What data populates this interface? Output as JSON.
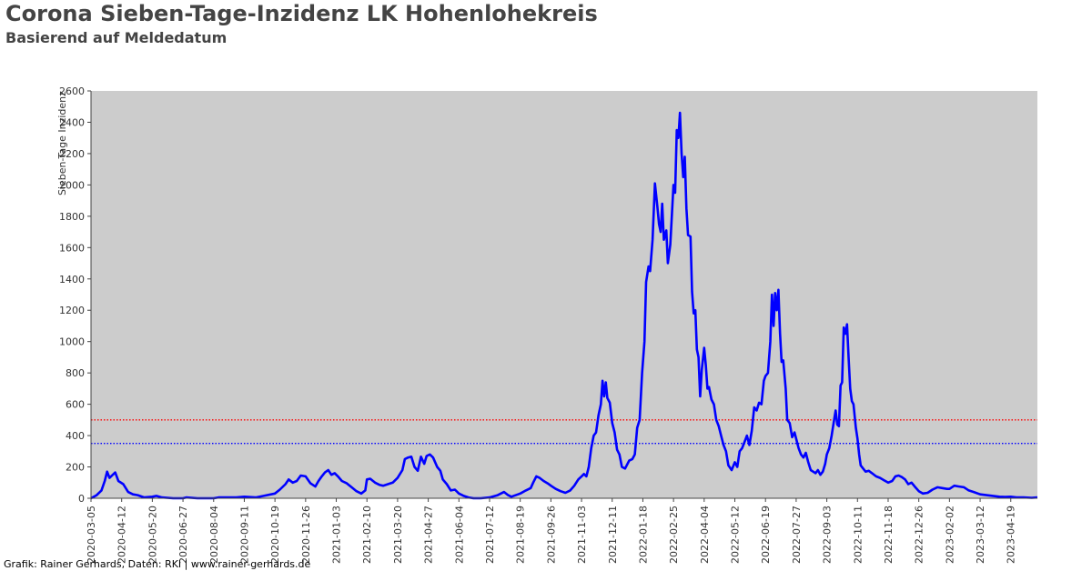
{
  "header": {
    "title": "Corona Sieben-Tage-Inzidenz LK Hohenlohekreis",
    "subtitle": "Basierend auf Meldedatum"
  },
  "footer": {
    "credit": "Grafik: Rainer Gerhards, Daten: RKI | www.rainer-gerhards.de"
  },
  "colors": {
    "plot_background": "#cccccc",
    "series_line": "#0000ff",
    "threshold_500": "#ff0000",
    "threshold_350": "#0000ff"
  },
  "chart_data": {
    "type": "line",
    "title": "Corona Sieben-Tage-Inzidenz LK Hohenlohekreis",
    "subtitle": "Basierend auf Meldedatum",
    "xlabel": "",
    "ylabel": "Sieben-Tage Inzidenz",
    "ylim": [
      0,
      2600
    ],
    "xlim": [
      "2020-03-05",
      "2023-05-22"
    ],
    "grid": false,
    "yticks": [
      0,
      200,
      400,
      600,
      800,
      1000,
      1200,
      1400,
      1600,
      1800,
      2000,
      2200,
      2400,
      2600
    ],
    "xticks": [
      "2020-03-05",
      "2020-04-12",
      "2020-05-20",
      "2020-06-27",
      "2020-08-04",
      "2020-09-11",
      "2020-10-19",
      "2020-11-26",
      "2021-01-03",
      "2021-02-10",
      "2021-03-20",
      "2021-04-27",
      "2021-06-04",
      "2021-07-12",
      "2021-08-19",
      "2021-09-26",
      "2021-11-03",
      "2021-12-11",
      "2022-01-18",
      "2022-02-25",
      "2022-04-04",
      "2022-05-12",
      "2022-06-19",
      "2022-07-27",
      "2022-09-03",
      "2022-10-11",
      "2022-11-18",
      "2022-12-26",
      "2023-02-02",
      "2023-03-12",
      "2023-04-19"
    ],
    "reference_lines": [
      {
        "y": 500,
        "color": "#ff0000",
        "style": "dotted"
      },
      {
        "y": 350,
        "color": "#0000ff",
        "style": "dotted"
      }
    ],
    "series": [
      {
        "color": "#0000ff",
        "points": [
          [
            "2020-03-05",
            0
          ],
          [
            "2020-03-12",
            20
          ],
          [
            "2020-03-18",
            50
          ],
          [
            "2020-03-22",
            110
          ],
          [
            "2020-03-25",
            170
          ],
          [
            "2020-03-28",
            130
          ],
          [
            "2020-04-01",
            150
          ],
          [
            "2020-04-04",
            165
          ],
          [
            "2020-04-08",
            110
          ],
          [
            "2020-04-14",
            90
          ],
          [
            "2020-04-20",
            40
          ],
          [
            "2020-04-26",
            25
          ],
          [
            "2020-05-02",
            20
          ],
          [
            "2020-05-10",
            5
          ],
          [
            "2020-05-20",
            10
          ],
          [
            "2020-05-25",
            15
          ],
          [
            "2020-06-01",
            5
          ],
          [
            "2020-06-15",
            0
          ],
          [
            "2020-06-27",
            0
          ],
          [
            "2020-07-01",
            5
          ],
          [
            "2020-07-15",
            0
          ],
          [
            "2020-08-04",
            0
          ],
          [
            "2020-08-10",
            5
          ],
          [
            "2020-09-01",
            5
          ],
          [
            "2020-09-11",
            10
          ],
          [
            "2020-09-25",
            5
          ],
          [
            "2020-10-05",
            15
          ],
          [
            "2020-10-19",
            30
          ],
          [
            "2020-10-25",
            55
          ],
          [
            "2020-11-01",
            90
          ],
          [
            "2020-11-05",
            120
          ],
          [
            "2020-11-10",
            100
          ],
          [
            "2020-11-15",
            110
          ],
          [
            "2020-11-20",
            145
          ],
          [
            "2020-11-26",
            140
          ],
          [
            "2020-12-02",
            95
          ],
          [
            "2020-12-08",
            75
          ],
          [
            "2020-12-12",
            110
          ],
          [
            "2020-12-16",
            140
          ],
          [
            "2020-12-20",
            165
          ],
          [
            "2020-12-24",
            180
          ],
          [
            "2020-12-28",
            150
          ],
          [
            "2021-01-01",
            160
          ],
          [
            "2021-01-05",
            140
          ],
          [
            "2021-01-10",
            110
          ],
          [
            "2021-01-16",
            95
          ],
          [
            "2021-01-22",
            70
          ],
          [
            "2021-01-28",
            45
          ],
          [
            "2021-02-03",
            30
          ],
          [
            "2021-02-08",
            50
          ],
          [
            "2021-02-10",
            120
          ],
          [
            "2021-02-14",
            125
          ],
          [
            "2021-02-20",
            100
          ],
          [
            "2021-02-26",
            85
          ],
          [
            "2021-03-02",
            80
          ],
          [
            "2021-03-08",
            90
          ],
          [
            "2021-03-14",
            100
          ],
          [
            "2021-03-20",
            130
          ],
          [
            "2021-03-26",
            180
          ],
          [
            "2021-03-29",
            250
          ],
          [
            "2021-04-02",
            260
          ],
          [
            "2021-04-06",
            265
          ],
          [
            "2021-04-10",
            200
          ],
          [
            "2021-04-14",
            175
          ],
          [
            "2021-04-18",
            265
          ],
          [
            "2021-04-22",
            220
          ],
          [
            "2021-04-25",
            270
          ],
          [
            "2021-04-29",
            280
          ],
          [
            "2021-05-03",
            260
          ],
          [
            "2021-05-08",
            200
          ],
          [
            "2021-05-12",
            175
          ],
          [
            "2021-05-15",
            120
          ],
          [
            "2021-05-20",
            90
          ],
          [
            "2021-05-25",
            50
          ],
          [
            "2021-05-30",
            55
          ],
          [
            "2021-06-04",
            30
          ],
          [
            "2021-06-10",
            15
          ],
          [
            "2021-06-16",
            5
          ],
          [
            "2021-06-22",
            0
          ],
          [
            "2021-07-01",
            0
          ],
          [
            "2021-07-12",
            5
          ],
          [
            "2021-07-22",
            20
          ],
          [
            "2021-07-30",
            40
          ],
          [
            "2021-08-04",
            20
          ],
          [
            "2021-08-08",
            10
          ],
          [
            "2021-08-19",
            30
          ],
          [
            "2021-08-26",
            50
          ],
          [
            "2021-09-01",
            65
          ],
          [
            "2021-09-04",
            100
          ],
          [
            "2021-09-08",
            140
          ],
          [
            "2021-09-12",
            130
          ],
          [
            "2021-09-17",
            110
          ],
          [
            "2021-09-22",
            95
          ],
          [
            "2021-09-26",
            80
          ],
          [
            "2021-10-02",
            60
          ],
          [
            "2021-10-08",
            45
          ],
          [
            "2021-10-14",
            35
          ],
          [
            "2021-10-20",
            50
          ],
          [
            "2021-10-25",
            80
          ],
          [
            "2021-10-30",
            120
          ],
          [
            "2021-11-03",
            140
          ],
          [
            "2021-11-06",
            155
          ],
          [
            "2021-11-09",
            140
          ],
          [
            "2021-11-12",
            200
          ],
          [
            "2021-11-15",
            320
          ],
          [
            "2021-11-18",
            400
          ],
          [
            "2021-11-21",
            420
          ],
          [
            "2021-11-24",
            530
          ],
          [
            "2021-11-27",
            600
          ],
          [
            "2021-11-29",
            750
          ],
          [
            "2021-12-01",
            650
          ],
          [
            "2021-12-03",
            740
          ],
          [
            "2021-12-05",
            640
          ],
          [
            "2021-12-08",
            610
          ],
          [
            "2021-12-11",
            480
          ],
          [
            "2021-12-14",
            420
          ],
          [
            "2021-12-17",
            310
          ],
          [
            "2021-12-20",
            280
          ],
          [
            "2021-12-23",
            200
          ],
          [
            "2021-12-27",
            190
          ],
          [
            "2022-01-01",
            240
          ],
          [
            "2022-01-05",
            250
          ],
          [
            "2022-01-08",
            280
          ],
          [
            "2022-01-11",
            450
          ],
          [
            "2022-01-14",
            500
          ],
          [
            "2022-01-17",
            800
          ],
          [
            "2022-01-20",
            1000
          ],
          [
            "2022-01-22",
            1380
          ],
          [
            "2022-01-25",
            1480
          ],
          [
            "2022-01-27",
            1450
          ],
          [
            "2022-01-30",
            1650
          ],
          [
            "2022-02-02",
            2010
          ],
          [
            "2022-02-05",
            1860
          ],
          [
            "2022-02-07",
            1750
          ],
          [
            "2022-02-09",
            1700
          ],
          [
            "2022-02-11",
            1880
          ],
          [
            "2022-02-13",
            1650
          ],
          [
            "2022-02-16",
            1710
          ],
          [
            "2022-02-18",
            1500
          ],
          [
            "2022-02-21",
            1620
          ],
          [
            "2022-02-25",
            2000
          ],
          [
            "2022-02-27",
            1950
          ],
          [
            "2022-03-01",
            2350
          ],
          [
            "2022-03-03",
            2300
          ],
          [
            "2022-03-05",
            2460
          ],
          [
            "2022-03-07",
            2200
          ],
          [
            "2022-03-09",
            2050
          ],
          [
            "2022-03-11",
            2180
          ],
          [
            "2022-03-13",
            1850
          ],
          [
            "2022-03-15",
            1680
          ],
          [
            "2022-03-18",
            1670
          ],
          [
            "2022-03-20",
            1320
          ],
          [
            "2022-03-22",
            1180
          ],
          [
            "2022-03-24",
            1200
          ],
          [
            "2022-03-26",
            950
          ],
          [
            "2022-03-28",
            900
          ],
          [
            "2022-03-30",
            650
          ],
          [
            "2022-04-01",
            820
          ],
          [
            "2022-04-04",
            960
          ],
          [
            "2022-04-06",
            850
          ],
          [
            "2022-04-08",
            700
          ],
          [
            "2022-04-10",
            710
          ],
          [
            "2022-04-13",
            630
          ],
          [
            "2022-04-16",
            600
          ],
          [
            "2022-04-19",
            500
          ],
          [
            "2022-04-22",
            460
          ],
          [
            "2022-04-25",
            400
          ],
          [
            "2022-04-28",
            340
          ],
          [
            "2022-05-01",
            300
          ],
          [
            "2022-05-04",
            210
          ],
          [
            "2022-05-08",
            180
          ],
          [
            "2022-05-12",
            230
          ],
          [
            "2022-05-15",
            200
          ],
          [
            "2022-05-18",
            300
          ],
          [
            "2022-05-21",
            320
          ],
          [
            "2022-05-24",
            360
          ],
          [
            "2022-05-27",
            400
          ],
          [
            "2022-05-30",
            340
          ],
          [
            "2022-06-02",
            430
          ],
          [
            "2022-06-05",
            580
          ],
          [
            "2022-06-08",
            560
          ],
          [
            "2022-06-11",
            610
          ],
          [
            "2022-06-14",
            600
          ],
          [
            "2022-06-17",
            750
          ],
          [
            "2022-06-19",
            780
          ],
          [
            "2022-06-22",
            800
          ],
          [
            "2022-06-25",
            1000
          ],
          [
            "2022-06-27",
            1300
          ],
          [
            "2022-06-29",
            1100
          ],
          [
            "2022-07-01",
            1310
          ],
          [
            "2022-07-03",
            1200
          ],
          [
            "2022-07-05",
            1330
          ],
          [
            "2022-07-07",
            1050
          ],
          [
            "2022-07-09",
            870
          ],
          [
            "2022-07-11",
            880
          ],
          [
            "2022-07-14",
            700
          ],
          [
            "2022-07-16",
            500
          ],
          [
            "2022-07-19",
            480
          ],
          [
            "2022-07-22",
            390
          ],
          [
            "2022-07-25",
            420
          ],
          [
            "2022-07-27",
            380
          ],
          [
            "2022-07-30",
            320
          ],
          [
            "2022-08-02",
            280
          ],
          [
            "2022-08-05",
            260
          ],
          [
            "2022-08-08",
            290
          ],
          [
            "2022-08-11",
            230
          ],
          [
            "2022-08-14",
            180
          ],
          [
            "2022-08-17",
            170
          ],
          [
            "2022-08-20",
            160
          ],
          [
            "2022-08-23",
            180
          ],
          [
            "2022-08-26",
            150
          ],
          [
            "2022-08-29",
            170
          ],
          [
            "2022-09-01",
            220
          ],
          [
            "2022-09-03",
            280
          ],
          [
            "2022-09-06",
            320
          ],
          [
            "2022-09-09",
            400
          ],
          [
            "2022-09-12",
            500
          ],
          [
            "2022-09-14",
            560
          ],
          [
            "2022-09-16",
            470
          ],
          [
            "2022-09-18",
            460
          ],
          [
            "2022-09-20",
            720
          ],
          [
            "2022-09-22",
            740
          ],
          [
            "2022-09-24",
            1090
          ],
          [
            "2022-09-26",
            1050
          ],
          [
            "2022-09-28",
            1110
          ],
          [
            "2022-09-30",
            900
          ],
          [
            "2022-10-02",
            700
          ],
          [
            "2022-10-04",
            620
          ],
          [
            "2022-10-06",
            600
          ],
          [
            "2022-10-09",
            450
          ],
          [
            "2022-10-11",
            380
          ],
          [
            "2022-10-13",
            280
          ],
          [
            "2022-10-15",
            210
          ],
          [
            "2022-10-18",
            190
          ],
          [
            "2022-10-21",
            170
          ],
          [
            "2022-10-25",
            175
          ],
          [
            "2022-10-29",
            160
          ],
          [
            "2022-11-03",
            140
          ],
          [
            "2022-11-08",
            130
          ],
          [
            "2022-11-13",
            115
          ],
          [
            "2022-11-18",
            100
          ],
          [
            "2022-11-23",
            110
          ],
          [
            "2022-11-27",
            140
          ],
          [
            "2022-12-01",
            145
          ],
          [
            "2022-12-05",
            135
          ],
          [
            "2022-12-09",
            120
          ],
          [
            "2022-12-13",
            90
          ],
          [
            "2022-12-17",
            100
          ],
          [
            "2022-12-21",
            75
          ],
          [
            "2022-12-26",
            45
          ],
          [
            "2022-12-31",
            30
          ],
          [
            "2023-01-06",
            35
          ],
          [
            "2023-01-12",
            55
          ],
          [
            "2023-01-18",
            70
          ],
          [
            "2023-01-24",
            65
          ],
          [
            "2023-01-30",
            60
          ],
          [
            "2023-02-02",
            60
          ],
          [
            "2023-02-08",
            80
          ],
          [
            "2023-02-14",
            75
          ],
          [
            "2023-02-20",
            70
          ],
          [
            "2023-02-26",
            50
          ],
          [
            "2023-03-04",
            40
          ],
          [
            "2023-03-12",
            25
          ],
          [
            "2023-03-20",
            20
          ],
          [
            "2023-03-28",
            15
          ],
          [
            "2023-04-05",
            10
          ],
          [
            "2023-04-12",
            8
          ],
          [
            "2023-04-19",
            10
          ],
          [
            "2023-04-26",
            5
          ],
          [
            "2023-05-05",
            5
          ],
          [
            "2023-05-15",
            3
          ],
          [
            "2023-05-22",
            5
          ]
        ]
      }
    ]
  }
}
